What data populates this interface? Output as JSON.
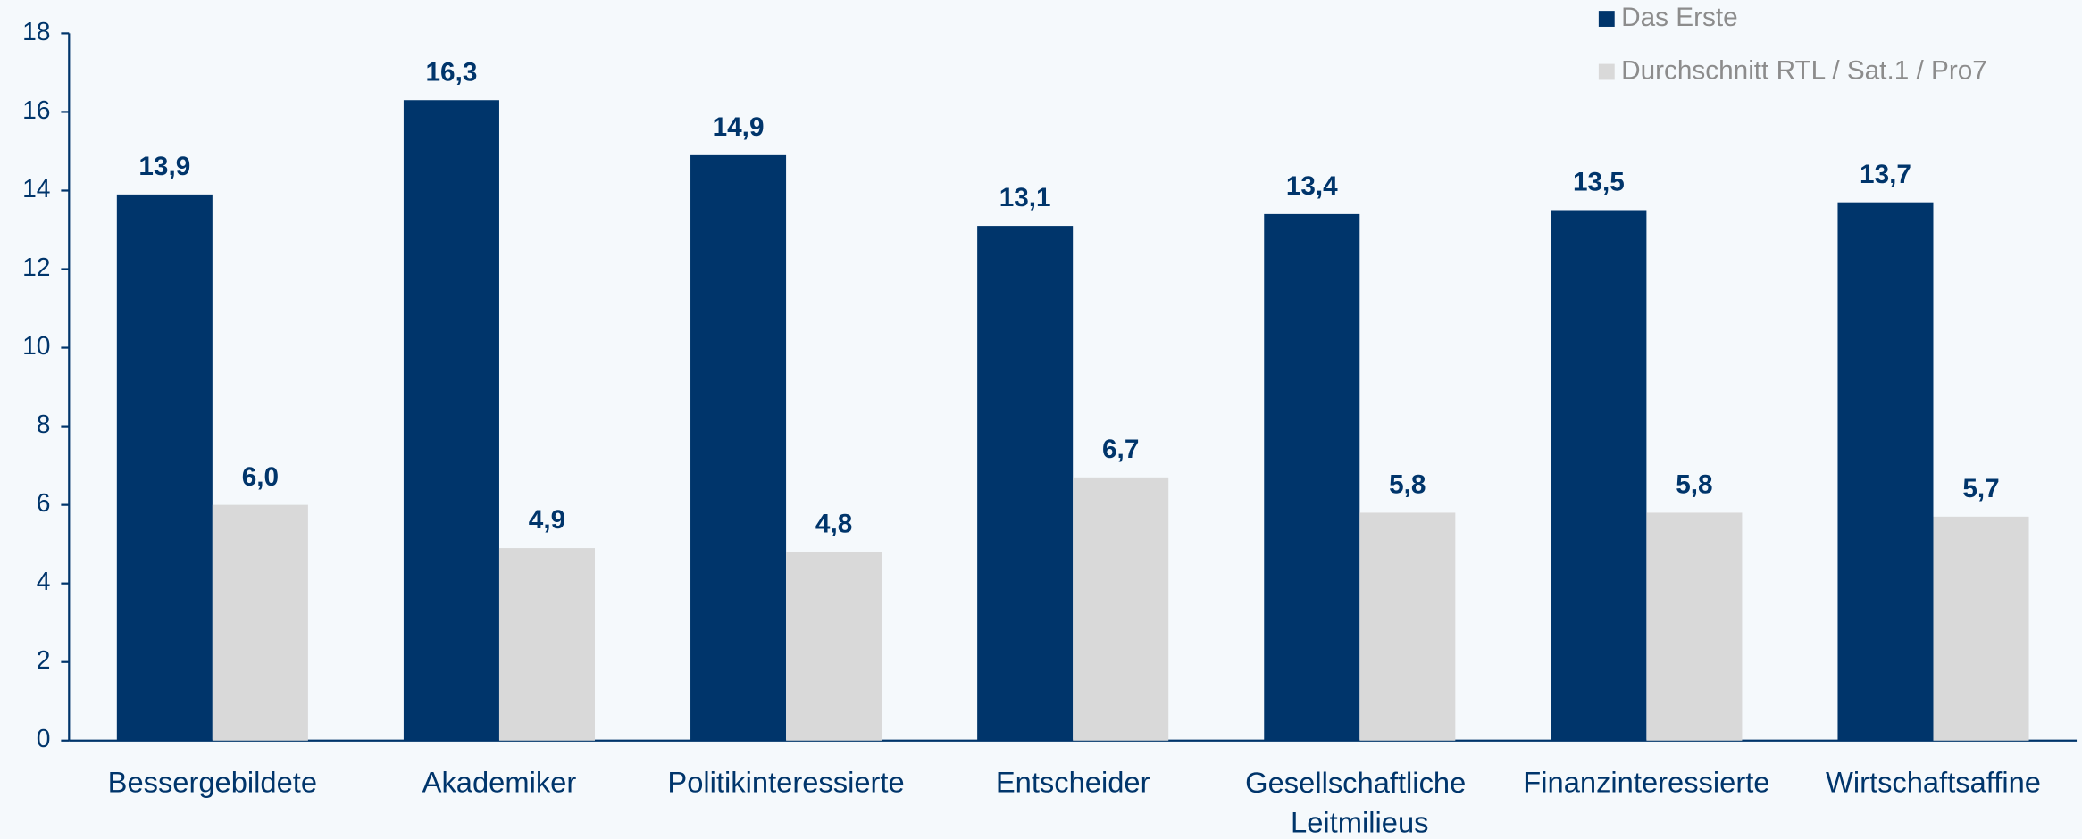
{
  "chart_data": {
    "type": "bar",
    "categories": [
      "Bessergebildete",
      "Akademiker",
      "Politikinteressierte",
      "Entscheider",
      "Gesellschaftliche Leitmilieus",
      "Finanzinteressierte",
      "Wirtschaftsaffine"
    ],
    "series": [
      {
        "name": "Das Erste",
        "color": "#00356b",
        "values": [
          13.9,
          16.3,
          14.9,
          13.1,
          13.4,
          13.5,
          13.7
        ],
        "value_labels": [
          "13,9",
          "16,3",
          "14,9",
          "13,1",
          "13,4",
          "13,5",
          "13,7"
        ]
      },
      {
        "name": "Durchschnitt RTL / Sat.1 / Pro7",
        "color": "#d9d9d9",
        "values": [
          6.0,
          4.9,
          4.8,
          6.7,
          5.8,
          5.8,
          5.7
        ],
        "value_labels": [
          "6,0",
          "4,9",
          "4,8",
          "6,7",
          "5,8",
          "5,8",
          "5,7"
        ]
      }
    ],
    "ylim": [
      0,
      18
    ],
    "yticks": [
      0,
      2,
      4,
      6,
      8,
      10,
      12,
      14,
      16,
      18
    ],
    "legend": "top-right"
  }
}
